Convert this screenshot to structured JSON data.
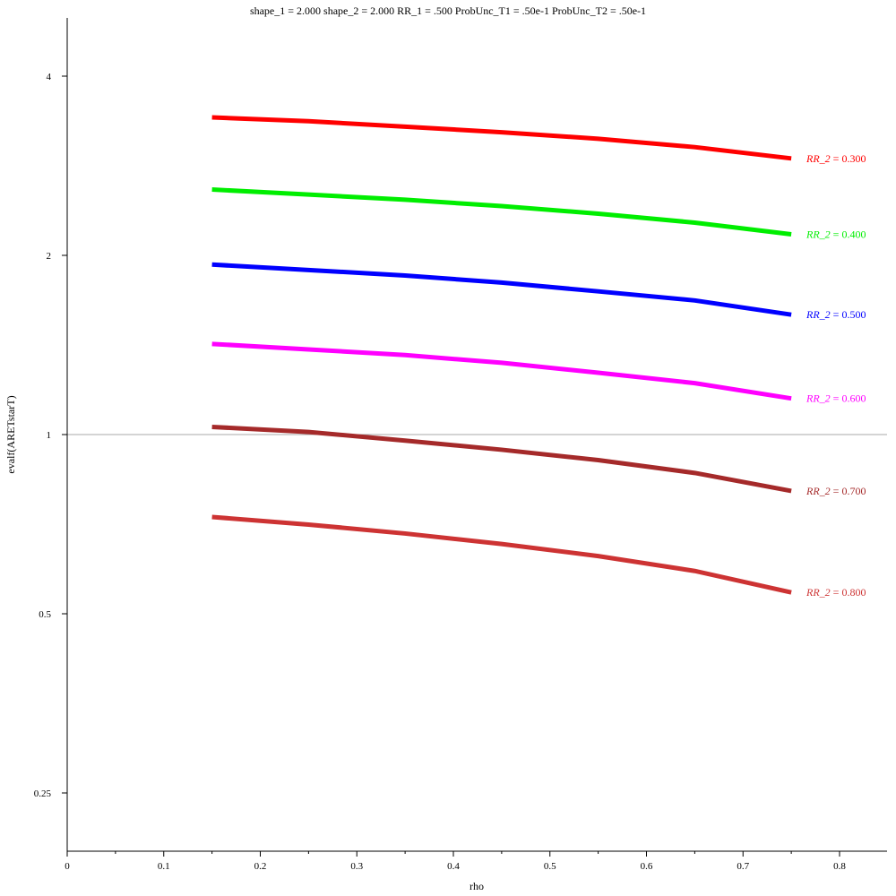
{
  "chart_data": {
    "type": "line",
    "title": "shape_1 = 2.000  shape_2 = 2.000  RR_1 = .500  ProbUnc_T1 = .50e-1  ProbUnc_T2 = .50e-1",
    "xlabel": "rho",
    "ylabel": "evalf(ARETstarT)",
    "xlim": [
      0,
      0.85
    ],
    "ylim": [
      0.2,
      5.0
    ],
    "yscale": "log",
    "grid": false,
    "reference_line": 1,
    "x_ticks": [
      0,
      0.1,
      0.2,
      0.3,
      0.4,
      0.5,
      0.6,
      0.7,
      0.8
    ],
    "x_tick_labels": [
      "0",
      "0.1",
      "0.2",
      "0.3",
      "0.4",
      "0.5",
      "0.6",
      "0.7",
      "0.8"
    ],
    "y_ticks": [
      0.25,
      0.5,
      1,
      2,
      4
    ],
    "y_tick_labels": [
      "0.25",
      "0.5",
      "1",
      "2",
      "4"
    ],
    "x": [
      0.15,
      0.25,
      0.35,
      0.45,
      0.55,
      0.65,
      0.75
    ],
    "series": [
      {
        "name": "RR_2 = 0.300",
        "label_italic": "RR_2",
        "label_value": " = 0.300",
        "color": "#ff0000",
        "values": [
          3.41,
          3.36,
          3.29,
          3.22,
          3.14,
          3.04,
          2.91
        ]
      },
      {
        "name": "RR_2 = 0.400",
        "label_italic": "RR_2",
        "label_value": " = 0.400",
        "color": "#00ee00",
        "values": [
          2.58,
          2.53,
          2.48,
          2.42,
          2.35,
          2.27,
          2.17
        ]
      },
      {
        "name": "RR_2 = 0.500",
        "label_italic": "RR_2",
        "label_value": " = 0.500",
        "color": "#0000ff",
        "values": [
          1.93,
          1.89,
          1.85,
          1.8,
          1.74,
          1.68,
          1.59
        ]
      },
      {
        "name": "RR_2 = 0.600",
        "label_italic": "RR_2",
        "label_value": " = 0.600",
        "color": "#ff00ff",
        "values": [
          1.42,
          1.39,
          1.36,
          1.32,
          1.27,
          1.22,
          1.15
        ]
      },
      {
        "name": "RR_2 = 0.700",
        "label_italic": "RR_2",
        "label_value": " = 0.700",
        "color": "#a52a2a",
        "values": [
          1.03,
          1.01,
          0.977,
          0.943,
          0.906,
          0.862,
          0.804
        ]
      },
      {
        "name": "RR_2 = 0.800",
        "label_italic": "RR_2",
        "label_value": " = 0.800",
        "color": "#cd3333",
        "values": [
          0.727,
          0.706,
          0.682,
          0.655,
          0.625,
          0.59,
          0.543
        ]
      }
    ]
  }
}
